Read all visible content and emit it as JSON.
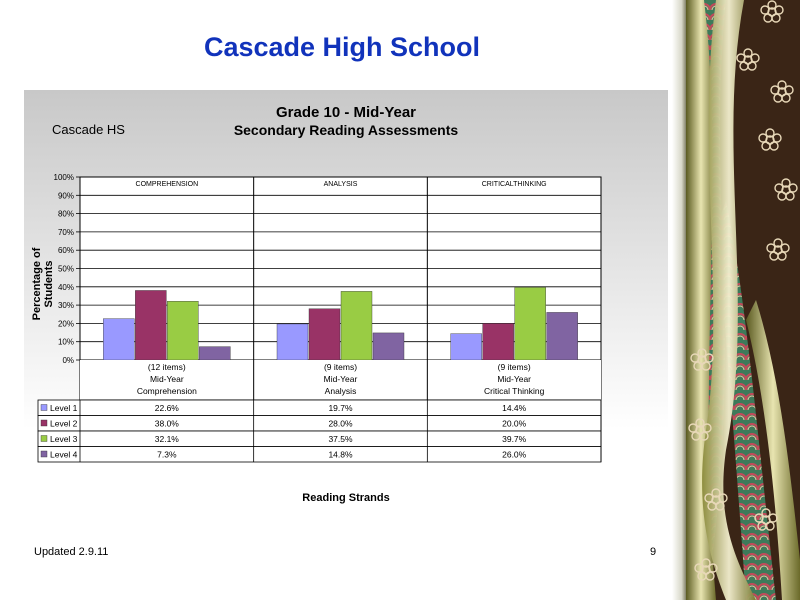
{
  "slide": {
    "title": "Cascade High School",
    "updated": "Updated  2.9.11",
    "page_number": "9"
  },
  "chart_data": {
    "type": "bar",
    "title_line1": "Grade 10 - Mid-Year",
    "title_line2": "Secondary Reading Assessments",
    "school": "Cascade HS",
    "ylabel": "Percentage of Students",
    "xlabel": "Reading Strands",
    "ylim": [
      0,
      100
    ],
    "yticks": [
      "0%",
      "10%",
      "20%",
      "30%",
      "40%",
      "50%",
      "60%",
      "70%",
      "80%",
      "90%",
      "100%"
    ],
    "grid": true,
    "legend": "data-table",
    "group_headers": [
      "COMPREHENSION",
      "ANALYSIS",
      "CRITICALTHINKING"
    ],
    "categories": [
      [
        "(12 items)",
        "Mid-Year",
        "Comprehension"
      ],
      [
        "(9 items)",
        "Mid-Year",
        "Analysis"
      ],
      [
        "(9 items)",
        "Mid-Year",
        "Critical Thinking"
      ]
    ],
    "series": [
      {
        "name": "Level 1",
        "color": "#9999ff",
        "values": [
          22.6,
          19.7,
          14.4
        ],
        "labels": [
          "22.6%",
          "19.7%",
          "14.4%"
        ]
      },
      {
        "name": "Level 2",
        "color": "#993366",
        "values": [
          38.0,
          28.0,
          20.0
        ],
        "labels": [
          "38.0%",
          "28.0%",
          "20.0%"
        ]
      },
      {
        "name": "Level 3",
        "color": "#99cc44",
        "values": [
          32.1,
          37.5,
          39.7
        ],
        "labels": [
          "32.1%",
          "37.5%",
          "39.7%"
        ]
      },
      {
        "name": "Level 4",
        "color": "#8064a2",
        "values": [
          7.3,
          14.8,
          26.0
        ],
        "labels": [
          "7.3%",
          "14.8%",
          "26.0%"
        ]
      }
    ]
  }
}
